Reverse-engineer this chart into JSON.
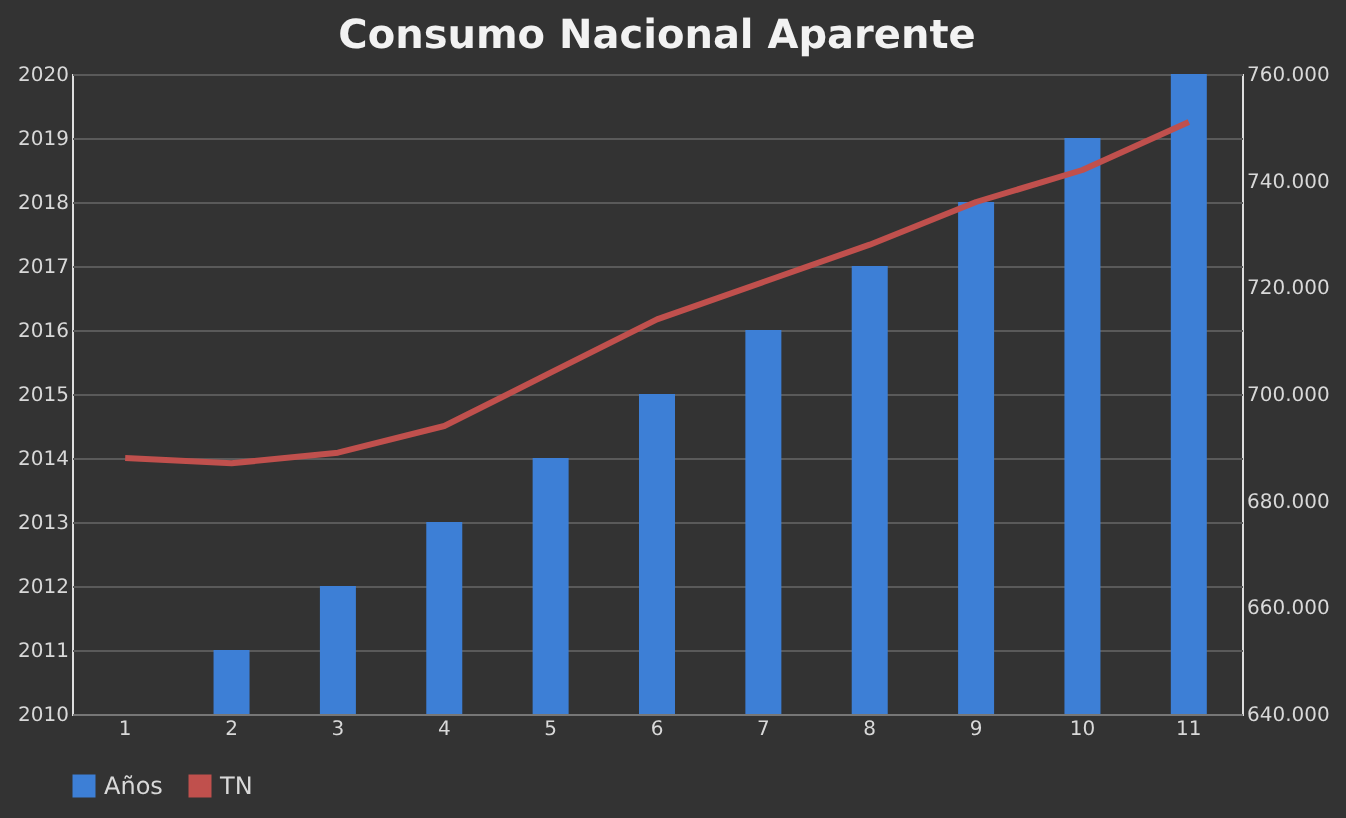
{
  "chart_data": {
    "type": "bar",
    "title": "Consumo Nacional Aparente",
    "categories": [
      "1",
      "2",
      "3",
      "4",
      "5",
      "6",
      "7",
      "8",
      "9",
      "10",
      "11"
    ],
    "series": [
      {
        "name": "Años",
        "color": "#3d7fd6",
        "values": [
          2010,
          2011,
          2012,
          2013,
          2014,
          2015,
          2016,
          2017,
          2018,
          2019,
          2020
        ]
      },
      {
        "name": "TN",
        "color": "#c0504d",
        "type": "line",
        "axis": "y2",
        "values": [
          688000,
          687000,
          689000,
          694000,
          704000,
          714000,
          721000,
          728000,
          736000,
          742000,
          751000
        ]
      }
    ],
    "ylim": [
      2010,
      2020
    ],
    "yticks": [
      2010,
      2011,
      2012,
      2013,
      2014,
      2015,
      2016,
      2017,
      2018,
      2019,
      2020
    ],
    "y2lim": [
      640000,
      760000
    ],
    "y2ticks": [
      {
        "value": 640000,
        "label": "640.000"
      },
      {
        "value": 660000,
        "label": "660.000"
      },
      {
        "value": 680000,
        "label": "680.000"
      },
      {
        "value": 700000,
        "label": "700.000"
      },
      {
        "value": 720000,
        "label": "720.000"
      },
      {
        "value": 740000,
        "label": "740.000"
      },
      {
        "value": 760000,
        "label": "760.000"
      }
    ],
    "grid": "y",
    "legend": "bottom",
    "marker": "none",
    "line_style": "solid"
  }
}
